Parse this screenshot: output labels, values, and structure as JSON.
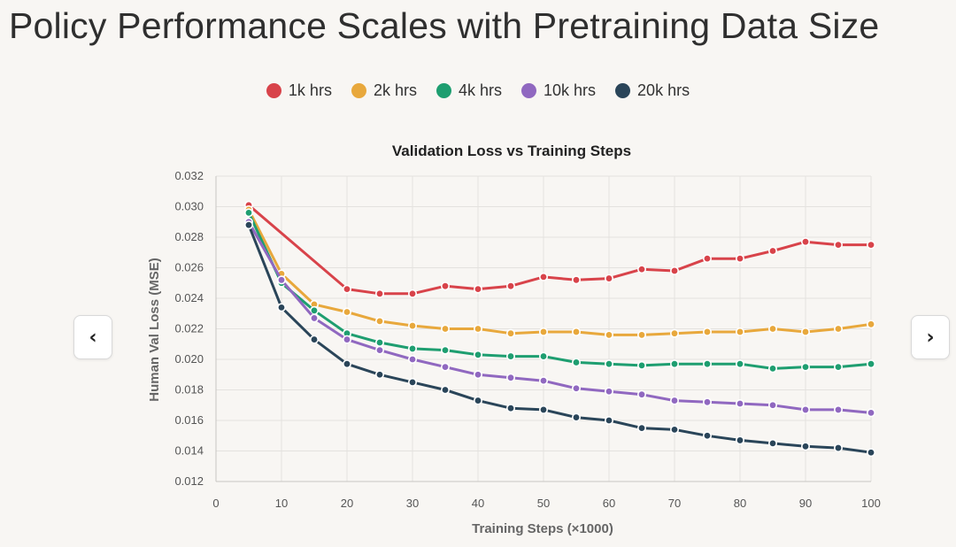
{
  "page": {
    "title": "Policy Performance Scales with Pretraining Data Size"
  },
  "nav": {
    "prev_label": "‹",
    "next_label": "›"
  },
  "chart_data": {
    "type": "line",
    "title": "Validation Loss vs Training Steps",
    "xlabel": "Training Steps (×1000)",
    "ylabel": "Human Val Loss (MSE)",
    "xlim": [
      0,
      100
    ],
    "ylim": [
      0.012,
      0.032
    ],
    "xticks": [
      0,
      10,
      20,
      30,
      40,
      50,
      60,
      70,
      80,
      90,
      100
    ],
    "xtick_labels": [
      "0",
      "10",
      "20",
      "30",
      "40",
      "50",
      "60",
      "70",
      "80",
      "90",
      "100"
    ],
    "yticks": [
      0.012,
      0.014,
      0.016,
      0.018,
      0.02,
      0.022,
      0.024,
      0.026,
      0.028,
      0.03,
      0.032
    ],
    "ytick_labels": [
      "0.012",
      "0.014",
      "0.016",
      "0.018",
      "0.020",
      "0.022",
      "0.024",
      "0.026",
      "0.028",
      "0.030",
      "0.032"
    ],
    "grid": true,
    "legend_position": "top-center",
    "x": [
      5,
      10,
      15,
      20,
      25,
      30,
      35,
      40,
      45,
      50,
      55,
      60,
      65,
      70,
      75,
      80,
      85,
      90,
      95,
      100
    ],
    "series": [
      {
        "name": "1k hrs",
        "color": "#d8434a",
        "x": [
          5,
          20,
          25,
          30,
          35,
          40,
          45,
          50,
          55,
          60,
          65,
          70,
          75,
          80,
          85,
          90,
          95,
          100
        ],
        "values": [
          0.0301,
          0.0246,
          0.0243,
          0.0243,
          0.0248,
          0.0246,
          0.0248,
          0.0254,
          0.0252,
          0.0253,
          0.0259,
          0.0258,
          0.0266,
          0.0266,
          0.0271,
          0.0277,
          0.0275,
          0.0275
        ]
      },
      {
        "name": "2k hrs",
        "color": "#e8a83c",
        "values": [
          0.0298,
          0.0256,
          0.0236,
          0.0231,
          0.0225,
          0.0222,
          0.022,
          0.022,
          0.0217,
          0.0218,
          0.0218,
          0.0216,
          0.0216,
          0.0217,
          0.0218,
          0.0218,
          0.022,
          0.0218,
          0.022,
          0.0223
        ]
      },
      {
        "name": "4k hrs",
        "color": "#1e9e70",
        "values": [
          0.0296,
          0.025,
          0.0232,
          0.0217,
          0.0211,
          0.0207,
          0.0206,
          0.0203,
          0.0202,
          0.0202,
          0.0198,
          0.0197,
          0.0196,
          0.0197,
          0.0197,
          0.0197,
          0.0194,
          0.0195,
          0.0195,
          0.0197
        ]
      },
      {
        "name": "10k hrs",
        "color": "#9068c0",
        "values": [
          0.029,
          0.0252,
          0.0227,
          0.0213,
          0.0206,
          0.02,
          0.0195,
          0.019,
          0.0188,
          0.0186,
          0.0181,
          0.0179,
          0.0177,
          0.0173,
          0.0172,
          0.0171,
          0.017,
          0.0167,
          0.0167,
          0.0165
        ]
      },
      {
        "name": "20k hrs",
        "color": "#2a4559",
        "values": [
          0.0288,
          0.0234,
          0.0213,
          0.0197,
          0.019,
          0.0185,
          0.018,
          0.0173,
          0.0168,
          0.0167,
          0.0162,
          0.016,
          0.0155,
          0.0154,
          0.015,
          0.0147,
          0.0145,
          0.0143,
          0.0142,
          0.0139
        ]
      }
    ]
  }
}
